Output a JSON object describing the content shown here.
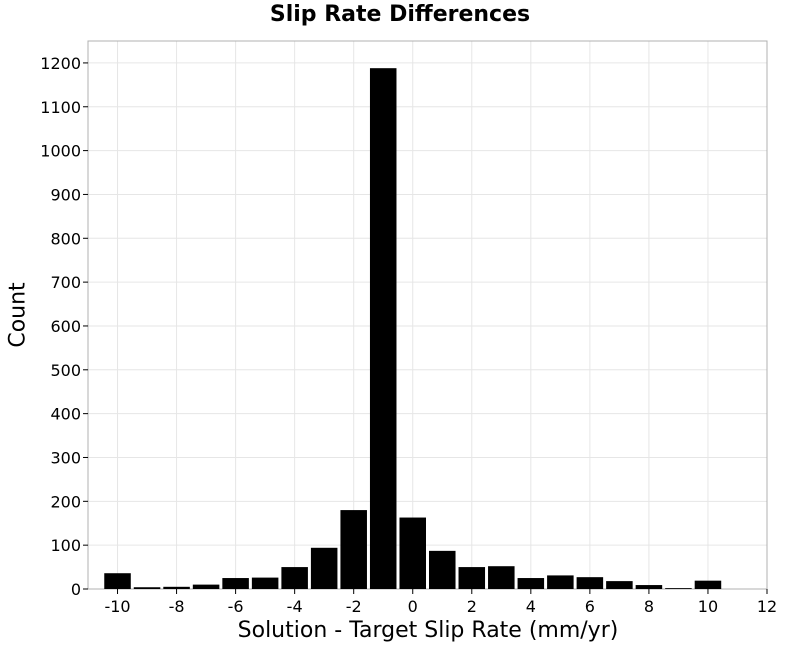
{
  "chart_data": {
    "type": "bar",
    "title": "Slip Rate Differences",
    "xlabel": "Solution - Target Slip Rate (mm/yr)",
    "ylabel": "Count",
    "xlim": [
      -11,
      12
    ],
    "ylim": [
      0,
      1250
    ],
    "xticks": [
      -10,
      -8,
      -6,
      -4,
      -2,
      0,
      2,
      4,
      6,
      8,
      10,
      12
    ],
    "yticks": [
      0,
      100,
      200,
      300,
      400,
      500,
      600,
      700,
      800,
      900,
      1000,
      1100,
      1200
    ],
    "bin_width": 1,
    "grid": true,
    "bar_color": "#000000",
    "x": [
      -10,
      -9,
      -8,
      -7,
      -6,
      -5,
      -4,
      -3,
      -2,
      -1,
      0,
      1,
      2,
      3,
      4,
      5,
      6,
      7,
      8,
      9,
      10
    ],
    "values": [
      36,
      4,
      5,
      10,
      25,
      26,
      50,
      94,
      180,
      1188,
      163,
      87,
      50,
      52,
      25,
      31,
      27,
      18,
      9,
      2,
      19
    ]
  }
}
